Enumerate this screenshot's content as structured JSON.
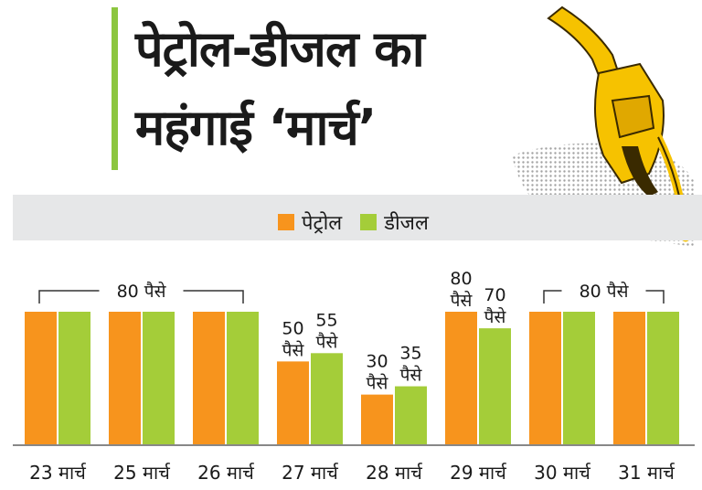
{
  "title": {
    "line1": "पेट्रोल-डीजल का",
    "line2": "महंगाई ‘मार्च’"
  },
  "colors": {
    "petrol": "#f7941d",
    "diesel": "#a4cd39",
    "accent": "#8cc63f"
  },
  "icon": "fuel-nozzle-icon",
  "chart_data": {
    "type": "bar",
    "categories": [
      "23 मार्च",
      "25 मार्च",
      "26 मार्च",
      "27 मार्च",
      "28 मार्च",
      "29 मार्च",
      "30 मार्च",
      "31 मार्च"
    ],
    "series": [
      {
        "name": "पेट्रोल",
        "values": [
          80,
          80,
          80,
          50,
          30,
          80,
          80,
          80
        ]
      },
      {
        "name": "डीजल",
        "values": [
          80,
          80,
          80,
          55,
          35,
          70,
          80,
          80
        ]
      }
    ],
    "unit": "पैसे",
    "bar_labels": [
      {
        "category": "27 मार्च",
        "series": "पेट्रोल",
        "text": "50 पैसे"
      },
      {
        "category": "27 मार्च",
        "series": "डीजल",
        "text": "55 पैसे"
      },
      {
        "category": "28 मार्च",
        "series": "पेट्रोल",
        "text": "30 पैसे"
      },
      {
        "category": "28 मार्च",
        "series": "डीजल",
        "text": "35 पैसे"
      },
      {
        "category": "29 मार्च",
        "series": "पेट्रोल",
        "text": "80 पैसे"
      },
      {
        "category": "29 मार्च",
        "series": "डीजल",
        "text": "70 पैसे"
      }
    ],
    "bracket_annotations": [
      {
        "from": "23 मार्च",
        "to": "26 मार्च",
        "text": "80 पैसे"
      },
      {
        "from": "30 मार्च",
        "to": "31 मार्च",
        "text": "80 पैसे"
      }
    ],
    "legend_position": "top-center",
    "ylim": [
      0,
      100
    ],
    "grid": false
  }
}
